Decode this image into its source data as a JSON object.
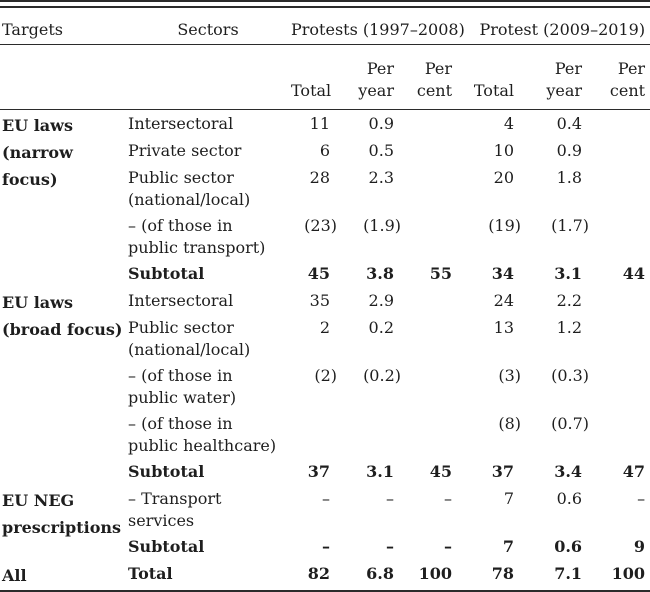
{
  "header": {
    "targets": "Targets",
    "sectors": "Sectors",
    "group1": "Protests (1997–2008)",
    "group2": "Protest (2009–2019)",
    "sub": [
      [
        "Total"
      ],
      [
        "Per",
        "year"
      ],
      [
        "Per",
        "cent"
      ],
      [
        "Total"
      ],
      [
        "Per",
        "year"
      ],
      [
        "Per",
        "cent"
      ]
    ]
  },
  "rows": [
    {
      "target": [
        "EU laws",
        "(narrow",
        "focus)"
      ],
      "sector": [
        "Intersectoral"
      ],
      "v": [
        "11",
        "0.9",
        "",
        "4",
        "0.4",
        ""
      ]
    },
    {
      "sector": [
        "Private sector"
      ],
      "v": [
        "6",
        "0.5",
        "",
        "10",
        "0.9",
        ""
      ]
    },
    {
      "sector": [
        "Public sector",
        "(national/local)"
      ],
      "v": [
        "28",
        "2.3",
        "",
        "20",
        "1.8",
        ""
      ]
    },
    {
      "sector": [
        "– (of those in",
        "public transport)"
      ],
      "v": [
        "(23)",
        "(1.9)",
        "",
        "(19)",
        "(1.7)",
        ""
      ]
    },
    {
      "sector": [
        "Subtotal"
      ],
      "v": [
        "45",
        "3.8",
        "55",
        "34",
        "3.1",
        "44"
      ],
      "bold": true
    },
    {
      "target": [
        "EU laws",
        "(broad focus)"
      ],
      "sector": [
        "Intersectoral"
      ],
      "v": [
        "35",
        "2.9",
        "",
        "24",
        "2.2",
        ""
      ]
    },
    {
      "sector": [
        "Public sector",
        "(national/local)"
      ],
      "v": [
        "2",
        "0.2",
        "",
        "13",
        "1.2",
        ""
      ]
    },
    {
      "sector": [
        "– (of those in",
        "public water)"
      ],
      "v": [
        "(2)",
        "(0.2)",
        "",
        "(3)",
        "(0.3)",
        ""
      ]
    },
    {
      "sector": [
        "– (of those in",
        "public healthcare)"
      ],
      "v": [
        "",
        "",
        "",
        "(8)",
        "(0.7)",
        ""
      ]
    },
    {
      "sector": [
        "Subtotal"
      ],
      "v": [
        "37",
        "3.1",
        "45",
        "37",
        "3.4",
        "47"
      ],
      "bold": true
    },
    {
      "target": [
        "EU NEG",
        "prescriptions"
      ],
      "sector": [
        "– Transport",
        "services"
      ],
      "v": [
        "–",
        "–",
        "–",
        "7",
        "0.6",
        "–"
      ]
    },
    {
      "sector": [
        "Subtotal"
      ],
      "v": [
        "–",
        "–",
        "–",
        "7",
        "0.6",
        "9"
      ],
      "bold": true
    },
    {
      "target": [
        "All"
      ],
      "sector": [
        "Total"
      ],
      "v": [
        "82",
        "6.8",
        "100",
        "78",
        "7.1",
        "100"
      ],
      "bold": true
    }
  ],
  "colors": {
    "text": "#1e1e1e",
    "rule": "#2b2b2b",
    "background": "#ffffff"
  }
}
